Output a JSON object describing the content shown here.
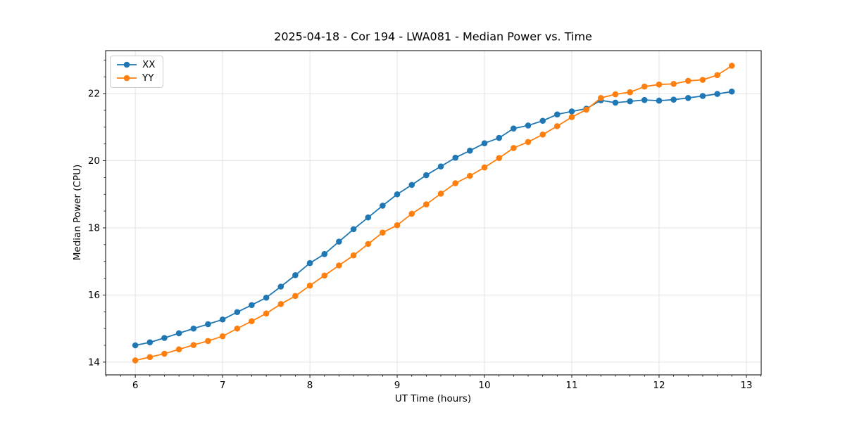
{
  "chart_data": {
    "type": "line",
    "title": "2025-04-18 - Cor 194 - LWA081 - Median Power vs. Time",
    "xlabel": "UT Time (hours)",
    "ylabel": "Median Power (CPU)",
    "xlim": [
      5.66,
      13.17
    ],
    "ylim": [
      13.62,
      23.28
    ],
    "x_major_ticks": [
      6,
      7,
      8,
      9,
      10,
      11,
      12,
      13
    ],
    "y_major_ticks": [
      14,
      16,
      18,
      20,
      22
    ],
    "x_minor_interval": 0.166667,
    "y_minor_interval": 0.5,
    "grid": true,
    "grid_color": "#e3e3e3",
    "legend_position": "upper left",
    "x": [
      6.0,
      6.167,
      6.333,
      6.5,
      6.667,
      6.833,
      7.0,
      7.167,
      7.333,
      7.5,
      7.667,
      7.833,
      8.0,
      8.167,
      8.333,
      8.5,
      8.667,
      8.833,
      9.0,
      9.167,
      9.333,
      9.5,
      9.667,
      9.833,
      10.0,
      10.167,
      10.333,
      10.5,
      10.667,
      10.833,
      11.0,
      11.167,
      11.333,
      11.5,
      11.667,
      11.833,
      12.0,
      12.167,
      12.333,
      12.5,
      12.667,
      12.833
    ],
    "series": [
      {
        "name": "XX",
        "color": "#1f77b4",
        "values": [
          14.5,
          14.59,
          14.72,
          14.86,
          15.0,
          15.13,
          15.27,
          15.49,
          15.7,
          15.92,
          16.25,
          16.59,
          16.95,
          17.22,
          17.59,
          17.96,
          18.31,
          18.66,
          19.0,
          19.28,
          19.57,
          19.83,
          20.09,
          20.3,
          20.52,
          20.68,
          20.96,
          21.05,
          21.19,
          21.38,
          21.47,
          21.55,
          21.8,
          21.73,
          21.77,
          21.81,
          21.79,
          21.82,
          21.87,
          21.93,
          21.99,
          22.06
        ]
      },
      {
        "name": "YY",
        "color": "#ff7f0e",
        "values": [
          14.05,
          14.15,
          14.25,
          14.38,
          14.51,
          14.63,
          14.77,
          15.0,
          15.22,
          15.45,
          15.73,
          15.97,
          16.28,
          16.58,
          16.88,
          17.18,
          17.52,
          17.86,
          18.08,
          18.42,
          18.7,
          19.02,
          19.33,
          19.55,
          19.8,
          20.08,
          20.38,
          20.56,
          20.78,
          21.03,
          21.3,
          21.52,
          21.87,
          21.98,
          22.04,
          22.21,
          22.27,
          22.29,
          22.38,
          22.41,
          22.55,
          22.83
        ]
      }
    ]
  }
}
